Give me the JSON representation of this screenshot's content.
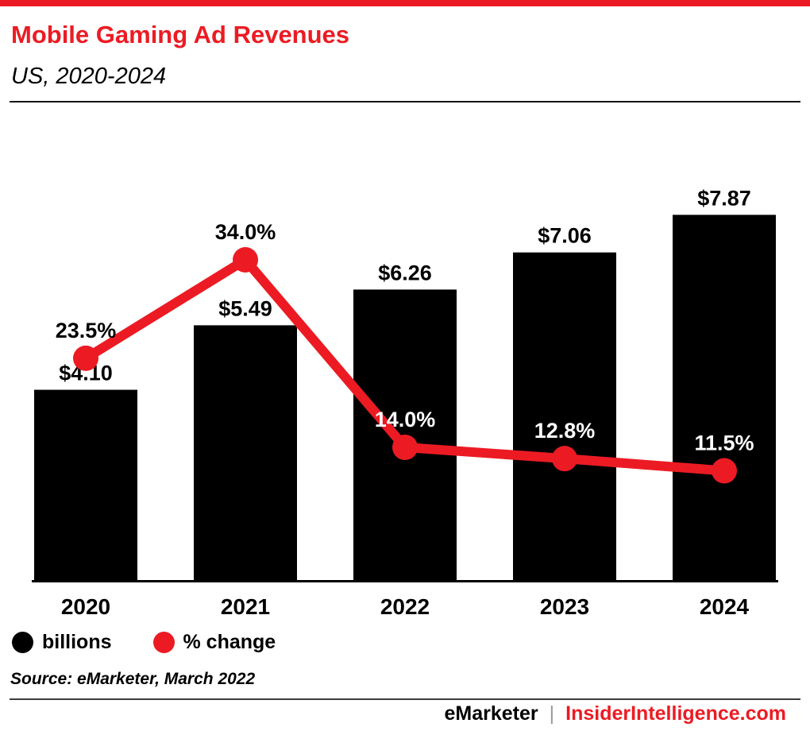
{
  "header": {
    "title": "Mobile Gaming Ad Revenues",
    "subtitle": "US, 2020-2024"
  },
  "chart_data": {
    "type": "bar",
    "title": "Mobile Gaming Ad Revenues",
    "subtitle": "US, 2020-2024",
    "categories": [
      "2020",
      "2021",
      "2022",
      "2023",
      "2024"
    ],
    "series": [
      {
        "name": "billions",
        "type": "bar",
        "values": [
          4.1,
          5.49,
          6.26,
          7.06,
          7.87
        ],
        "labels": [
          "$4.10",
          "$5.49",
          "$6.26",
          "$7.06",
          "$7.87"
        ],
        "color": "#000000"
      },
      {
        "name": "% change",
        "type": "line",
        "values": [
          23.5,
          34.0,
          14.0,
          12.8,
          11.5
        ],
        "labels": [
          "23.5%",
          "34.0%",
          "14.0%",
          "12.8%",
          "11.5%"
        ],
        "color": "#ec1b23",
        "label_colors": [
          "#000000",
          "#000000",
          "#ffffff",
          "#ffffff",
          "#ffffff"
        ]
      }
    ],
    "legend": [
      {
        "label": "billions",
        "color": "#000000"
      },
      {
        "label": "% change",
        "color": "#ec1b23"
      }
    ],
    "legend_position": "bottom-left",
    "grid": false,
    "ylim_bar": [
      0,
      10.3
    ],
    "ylim_line": [
      0,
      50.7
    ]
  },
  "source": "Source: eMarketer, March 2022",
  "footer": {
    "brand": "eMarketer",
    "separator": "|",
    "site": "InsiderIntelligence.com"
  },
  "colors": {
    "accent_red": "#ec1b23",
    "bar_black": "#000000",
    "background": "#ffffff"
  }
}
